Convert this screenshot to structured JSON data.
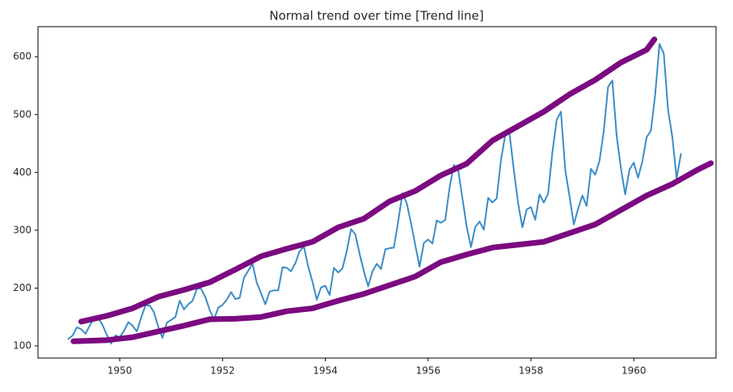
{
  "chart_data": {
    "type": "line",
    "title": "Normal trend over time [Trend line]",
    "xlim": [
      1948.41,
      1961.6
    ],
    "ylim": [
      79,
      652
    ],
    "xticks": [
      1950,
      1952,
      1954,
      1956,
      1958,
      1960
    ],
    "yticks": [
      100,
      200,
      300,
      400,
      500,
      600
    ],
    "series": [
      {
        "color": "#3a8cc6",
        "x": [
          1949,
          1949.083,
          1949.167,
          1949.25,
          1949.333,
          1949.417,
          1949.5,
          1949.583,
          1949.667,
          1949.75,
          1949.833,
          1949.917,
          1950,
          1950.083,
          1950.167,
          1950.25,
          1950.333,
          1950.417,
          1950.5,
          1950.583,
          1950.667,
          1950.75,
          1950.833,
          1950.917,
          1951,
          1951.083,
          1951.167,
          1951.25,
          1951.333,
          1951.417,
          1951.5,
          1951.583,
          1951.667,
          1951.75,
          1951.833,
          1951.917,
          1952,
          1952.083,
          1952.167,
          1952.25,
          1952.333,
          1952.417,
          1952.5,
          1952.583,
          1952.667,
          1952.75,
          1952.833,
          1952.917,
          1953,
          1953.083,
          1953.167,
          1953.25,
          1953.333,
          1953.417,
          1953.5,
          1953.583,
          1953.667,
          1953.75,
          1953.833,
          1953.917,
          1954,
          1954.083,
          1954.167,
          1954.25,
          1954.333,
          1954.417,
          1954.5,
          1954.583,
          1954.667,
          1954.75,
          1954.833,
          1954.917,
          1955,
          1955.083,
          1955.167,
          1955.25,
          1955.333,
          1955.417,
          1955.5,
          1955.583,
          1955.667,
          1955.75,
          1955.833,
          1955.917,
          1956,
          1956.083,
          1956.167,
          1956.25,
          1956.333,
          1956.417,
          1956.5,
          1956.583,
          1956.667,
          1956.75,
          1956.833,
          1956.917,
          1957,
          1957.083,
          1957.167,
          1957.25,
          1957.333,
          1957.417,
          1957.5,
          1957.583,
          1957.667,
          1957.75,
          1957.833,
          1957.917,
          1958,
          1958.083,
          1958.167,
          1958.25,
          1958.333,
          1958.417,
          1958.5,
          1958.583,
          1958.667,
          1958.75,
          1958.833,
          1958.917,
          1959,
          1959.083,
          1959.167,
          1959.25,
          1959.333,
          1959.417,
          1959.5,
          1959.583,
          1959.667,
          1959.75,
          1959.833,
          1959.917,
          1960,
          1960.083,
          1960.167,
          1960.25,
          1960.333,
          1960.417,
          1960.5,
          1960.583,
          1960.667,
          1960.75,
          1960.833,
          1960.917
        ],
        "values": [
          112,
          118,
          132,
          129,
          121,
          135,
          148,
          148,
          136,
          119,
          104,
          118,
          115,
          126,
          141,
          135,
          125,
          149,
          170,
          170,
          158,
          133,
          114,
          140,
          145,
          150,
          178,
          163,
          172,
          178,
          199,
          199,
          184,
          162,
          146,
          166,
          171,
          180,
          193,
          181,
          183,
          218,
          230,
          242,
          209,
          191,
          172,
          194,
          196,
          196,
          236,
          235,
          229,
          243,
          264,
          272,
          237,
          211,
          180,
          201,
          204,
          188,
          235,
          227,
          234,
          264,
          302,
          293,
          259,
          229,
          203,
          229,
          242,
          233,
          267,
          269,
          270,
          315,
          364,
          347,
          312,
          274,
          237,
          278,
          284,
          277,
          317,
          313,
          318,
          374,
          413,
          405,
          355,
          306,
          271,
          306,
          315,
          301,
          356,
          348,
          355,
          422,
          465,
          467,
          404,
          347,
          305,
          336,
          340,
          318,
          362,
          348,
          363,
          435,
          491,
          505,
          404,
          359,
          310,
          337,
          360,
          342,
          406,
          396,
          420,
          472,
          548,
          559,
          463,
          407,
          362,
          405,
          417,
          391,
          419,
          461,
          472,
          535,
          622,
          606,
          508,
          461,
          390,
          432
        ]
      },
      {
        "color": "#7b0a80",
        "x": [
          1949.25,
          1949.75,
          1950.25,
          1950.75,
          1951.25,
          1951.75,
          1952.25,
          1952.75,
          1953.25,
          1953.75,
          1954.25,
          1954.75,
          1955.25,
          1955.75,
          1956.25,
          1956.75,
          1957.25,
          1957.75,
          1958.25,
          1958.75,
          1959.25,
          1959.75,
          1960.25,
          1960.4
        ],
        "values": [
          142,
          152,
          165,
          185,
          197,
          210,
          232,
          255,
          268,
          280,
          305,
          320,
          350,
          368,
          395,
          415,
          455,
          480,
          505,
          535,
          560,
          590,
          612,
          630
        ]
      },
      {
        "color": "#7b0a80",
        "x": [
          1949.1,
          1949.75,
          1950.25,
          1950.75,
          1951.25,
          1951.75,
          1952.25,
          1952.75,
          1953.25,
          1953.75,
          1954.25,
          1954.75,
          1955.25,
          1955.75,
          1956.25,
          1956.75,
          1957.25,
          1957.75,
          1958.25,
          1958.75,
          1959.25,
          1959.75,
          1960.25,
          1960.75,
          1961.25,
          1961.5
        ],
        "values": [
          108,
          110,
          115,
          125,
          135,
          146,
          147,
          150,
          160,
          165,
          178,
          190,
          205,
          220,
          245,
          258,
          270,
          275,
          280,
          295,
          310,
          335,
          360,
          380,
          405,
          416
        ]
      }
    ]
  }
}
